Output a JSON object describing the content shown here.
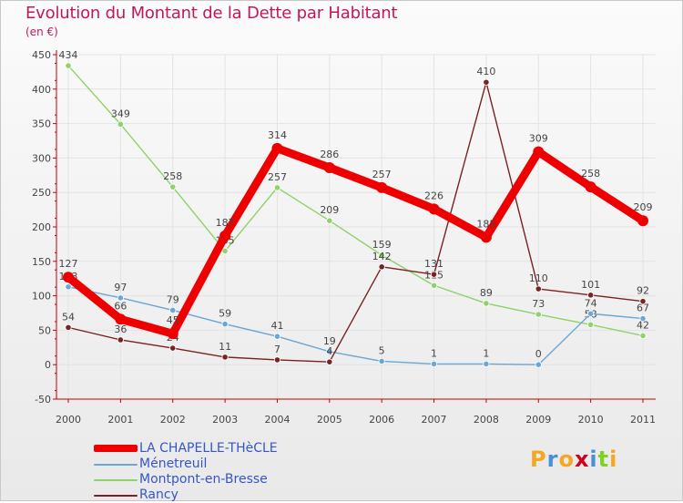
{
  "title": "Evolution du Montant de la Dette par Habitant",
  "unit": "(en €)",
  "logo": {
    "letters": [
      "P",
      "r",
      "o",
      "x",
      "i",
      "t",
      "i"
    ],
    "colors": [
      "#f5a623",
      "#4a90d9",
      "#f5a623",
      "#d0021b",
      "#4a90d9",
      "#7ed321",
      "#f5a623"
    ]
  },
  "chart_data": {
    "type": "line",
    "x": [
      "2000",
      "2001",
      "2002",
      "2003",
      "2004",
      "2005",
      "2006",
      "2007",
      "2008",
      "2009",
      "2010",
      "2011"
    ],
    "ylim": [
      -50,
      450
    ],
    "yticks": [
      -50,
      0,
      50,
      100,
      150,
      200,
      250,
      300,
      350,
      400,
      450
    ],
    "ytick_labels": [
      "-50",
      "0",
      "50",
      "100",
      "150",
      "200",
      "250",
      "300",
      "350",
      "400",
      "450"
    ],
    "grid": true,
    "legend_position": "bottom-left",
    "series": [
      {
        "name": "Montpont-en-Bresse",
        "color": "#8fd16a",
        "values": [
          434,
          349,
          258,
          165,
          257,
          209,
          159,
          115,
          89,
          73,
          58,
          42
        ],
        "labels": [
          "434",
          "349",
          "258",
          "165",
          "257",
          "209",
          "159",
          "115",
          "89",
          "73",
          "58",
          "42"
        ]
      },
      {
        "name": "Ménetreuil",
        "color": "#6aa6d6",
        "values": [
          113,
          97,
          79,
          59,
          41,
          19,
          5,
          1,
          1,
          0,
          74,
          67
        ],
        "labels": [
          "113",
          "97",
          "79",
          "59",
          "41",
          "19",
          "5",
          "1",
          "1",
          "0",
          "74",
          "67"
        ]
      },
      {
        "name": "Rancy",
        "color": "#7a2222",
        "values": [
          54,
          36,
          24,
          11,
          7,
          4,
          142,
          131,
          410,
          110,
          101,
          92
        ],
        "labels": [
          "54",
          "36",
          "24",
          "11",
          "7",
          "4",
          "142",
          "131",
          "410",
          "110",
          "101",
          "92"
        ]
      },
      {
        "name": "LA CHAPELLE-THèCLE",
        "color": "#ee0000",
        "values": [
          127,
          66,
          45,
          187,
          314,
          286,
          257,
          226,
          185,
          309,
          258,
          209
        ],
        "labels": [
          "127",
          "66",
          "45",
          "187",
          "314",
          "286",
          "257",
          "226",
          "185",
          "309",
          "258",
          "209"
        ]
      }
    ],
    "legend_order": [
      "LA CHAPELLE-THèCLE",
      "Ménetreuil",
      "Montpont-en-Bresse",
      "Rancy"
    ]
  }
}
